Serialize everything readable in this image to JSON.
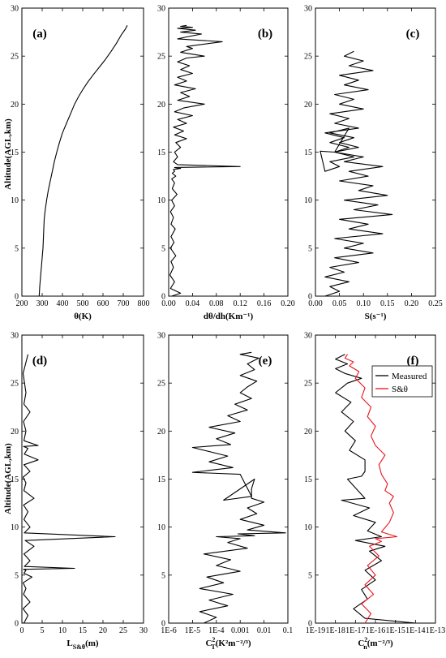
{
  "shared_ylabel": "Altitude(AGL,km)",
  "chart_data": [
    {
      "id": "a",
      "panel_label": "(a)",
      "type": "line",
      "xlabel": "θ(K)",
      "xlim": [
        200,
        800
      ],
      "ylim": [
        0,
        30
      ],
      "xticks": [
        "200",
        "300",
        "400",
        "500",
        "600",
        "700",
        "800"
      ],
      "yticks": [
        "0",
        "5",
        "10",
        "15",
        "20",
        "25",
        "30"
      ],
      "series": [
        {
          "color": "#000000",
          "x": [
            285,
            288,
            292,
            296,
            300,
            304,
            306,
            308,
            310,
            315,
            322,
            330,
            340,
            350,
            360,
            372,
            385,
            400,
            420,
            440,
            460,
            480,
            500,
            525,
            550,
            580,
            610,
            640,
            665,
            690,
            710,
            720
          ],
          "y": [
            0,
            1,
            2,
            3,
            4,
            5,
            6,
            7,
            8,
            9,
            10,
            11,
            12,
            13,
            14,
            15,
            16,
            17,
            18,
            19,
            20,
            20.8,
            21.5,
            22.3,
            23,
            23.8,
            24.6,
            25.5,
            26.3,
            27.2,
            27.8,
            28.2
          ]
        }
      ]
    },
    {
      "id": "b",
      "panel_label": "(b)",
      "type": "line",
      "xlabel": "dθ/dh(Km⁻¹)",
      "xlim": [
        0,
        0.2
      ],
      "ylim": [
        0,
        30
      ],
      "xticks": [
        "0.00",
        "0.04",
        "0.08",
        "0.12",
        "0.16",
        "0.20"
      ],
      "yticks": [
        "0",
        "5",
        "10",
        "15",
        "20",
        "25",
        "30"
      ],
      "series": [
        {
          "color": "#000000",
          "x": [
            0.005,
            0.02,
            0.003,
            0.01,
            0.002,
            0.008,
            0.004,
            0.012,
            0.003,
            0.009,
            0.004,
            0.011,
            0.004,
            0.008,
            0.003,
            0.01,
            0.005,
            0.014,
            0.006,
            0.01,
            0.005,
            0.012,
            0.006,
            0.01,
            0.008,
            0.02,
            0.01,
            0.12,
            0.015,
            0.008,
            0.015,
            0.01,
            0.02,
            0.012,
            0.03,
            0.01,
            0.025,
            0.008,
            0.03,
            0.015,
            0.04,
            0.01,
            0.025,
            0.06,
            0.015,
            0.035,
            0.02,
            0.045,
            0.01,
            0.03,
            0.015,
            0.04,
            0.02,
            0.035,
            0.015,
            0.03,
            0.06,
            0.02,
            0.04,
            0.03,
            0.09,
            0.015,
            0.03,
            0.055,
            0.02,
            0.045,
            0.015,
            0.04,
            0.02,
            0.03
          ],
          "y": [
            0,
            0.3,
            0.8,
            1.5,
            2.2,
            3,
            3.6,
            4.2,
            5,
            5.6,
            6.2,
            7,
            7.5,
            8.2,
            8.8,
            9.4,
            10,
            10.6,
            11.2,
            11.8,
            12.2,
            12.5,
            12.8,
            13,
            13.2,
            13.3,
            13.4,
            13.5,
            13.7,
            14,
            14.5,
            15,
            15.5,
            16,
            16.4,
            16.8,
            17.2,
            17.6,
            18,
            18.4,
            18.8,
            19.2,
            19.6,
            20,
            20.4,
            20.8,
            21.2,
            21.6,
            22,
            22.4,
            22.8,
            23.2,
            23.6,
            24,
            24.4,
            24.8,
            25,
            25.4,
            25.8,
            26,
            26.5,
            26.8,
            27,
            27.3,
            27.5,
            27.7,
            27.9,
            28,
            28.1,
            28.2
          ]
        }
      ]
    },
    {
      "id": "c",
      "panel_label": "(c)",
      "type": "line",
      "xlabel": "S(s⁻¹)",
      "xlim": [
        0,
        0.25
      ],
      "ylim": [
        0,
        30
      ],
      "xticks": [
        "0.00",
        "0.05",
        "0.10",
        "0.15",
        "0.20",
        "0.25"
      ],
      "yticks": [
        "0",
        "5",
        "10",
        "15",
        "20",
        "25",
        "30"
      ],
      "series": [
        {
          "color": "#000000",
          "x": [
            0.02,
            0.05,
            0.03,
            0.07,
            0.02,
            0.06,
            0.03,
            0.09,
            0.04,
            0.12,
            0.06,
            0.1,
            0.04,
            0.14,
            0.07,
            0.11,
            0.05,
            0.16,
            0.08,
            0.13,
            0.06,
            0.15,
            0.09,
            0.12,
            0.05,
            0.11,
            0.07,
            0.14,
            0.06,
            0.1,
            0.04,
            0.09,
            0.05,
            0.08,
            0.03,
            0.07,
            0.04,
            0.01,
            0.02,
            0.05,
            0.03,
            0.08,
            0.04,
            0.07,
            0.03,
            0.06,
            0.02,
            0.09,
            0.04,
            0.07,
            0.03,
            0.1,
            0.05,
            0.08,
            0.04,
            0.11,
            0.06,
            0.09,
            0.05,
            0.12,
            0.07,
            0.1,
            0.06,
            0.08
          ],
          "y": [
            0,
            0.5,
            1,
            1.5,
            2,
            2.5,
            3,
            3.5,
            4,
            4.5,
            5,
            5.5,
            6,
            6.5,
            7,
            7.5,
            8,
            8.5,
            9,
            9.5,
            10,
            10.5,
            11,
            11.5,
            12,
            12.5,
            13,
            13.5,
            14,
            14.5,
            15,
            15.5,
            16,
            16.5,
            17,
            17.5,
            15,
            15.1,
            13,
            13.5,
            14,
            14.5,
            15,
            15.5,
            16,
            16.5,
            17,
            17.5,
            18,
            18.5,
            19,
            19.5,
            20,
            20.5,
            21,
            21.5,
            22,
            22.5,
            23,
            23.5,
            24,
            24.5,
            25,
            25.5
          ]
        }
      ]
    },
    {
      "id": "d",
      "panel_label": "(d)",
      "type": "line",
      "xlabel": "L_S&θ(m)",
      "xlim": [
        0,
        30
      ],
      "ylim": [
        0,
        30
      ],
      "xticks": [
        "0",
        "5",
        "10",
        "15",
        "20",
        "25",
        "30"
      ],
      "yticks": [
        "0",
        "5",
        "10",
        "15",
        "20",
        "25",
        "30"
      ],
      "series": [
        {
          "color": "#000000",
          "x": [
            0.5,
            1.5,
            0.3,
            2,
            0.4,
            1,
            0.3,
            2.5,
            0.5,
            1,
            0.4,
            13,
            0.6,
            2,
            0.5,
            3,
            0.8,
            23,
            0.6,
            2,
            0.5,
            1.5,
            0.4,
            3,
            0.5,
            1,
            0.3,
            2,
            0.5,
            4,
            0.6,
            1.5,
            0.4,
            4,
            0.5,
            1,
            0.4,
            2,
            0.5,
            1,
            0.3,
            1.5
          ],
          "y": [
            0,
            0.8,
            1.5,
            2.2,
            3,
            3.6,
            4.2,
            4.8,
            5.2,
            5.5,
            5.6,
            5.7,
            5.9,
            6.5,
            7.2,
            8,
            8.6,
            9,
            9.4,
            10,
            10.8,
            11.6,
            12.3,
            13,
            13.8,
            14.6,
            15.2,
            15.8,
            16.5,
            17,
            17.6,
            18.2,
            18.4,
            18.5,
            19,
            20,
            21,
            22,
            22.8,
            24,
            26,
            28
          ]
        }
      ]
    },
    {
      "id": "e",
      "panel_label": "(e)",
      "type": "line",
      "xlabel": "C²T(K²m⁻²/³)",
      "xscale": "log",
      "xlim": [
        1e-06,
        0.1
      ],
      "ylim": [
        0,
        30
      ],
      "xticks": [
        "1E-6",
        "1E-5",
        "1E-4",
        "0.001",
        "0.01",
        "0.1"
      ],
      "yticks": [
        "0",
        "5",
        "10",
        "15",
        "20",
        "25",
        "30"
      ],
      "series": [
        {
          "color": "#000000",
          "x": [
            3e-05,
            0.0001,
            2e-05,
            0.0003,
            5e-05,
            0.0005,
            2e-05,
            0.0002,
            4e-05,
            0.001,
            0.0001,
            0.0004,
            3e-05,
            0.002,
            0.0003,
            0.001,
            0.0001,
            0.004,
            0.0008,
            0.08,
            0.002,
            0.01,
            0.001,
            0.005,
            0.002,
            0.01,
            0.003,
            0.003,
            0.004,
            0.0002,
            0.003,
            0.001,
            1e-05,
            0.0005,
            5e-05,
            0.0003,
            1e-05,
            0.0004,
            0.0001,
            0.0006,
            5e-05,
            0.001,
            0.0003,
            0.002,
            0.0006,
            0.003,
            0.001,
            0.002,
            0.005,
            0.001,
            0.004,
            0.002,
            0.006,
            0.001,
            0.003
          ],
          "y": [
            0,
            0.6,
            1.2,
            1.8,
            2.4,
            3,
            3.6,
            4.2,
            4.8,
            5.4,
            6,
            6.6,
            7.2,
            7.8,
            8.4,
            8.8,
            9,
            9.1,
            9.3,
            9.4,
            9.7,
            10.2,
            10.8,
            11.4,
            12,
            12.6,
            13,
            14,
            15,
            12.8,
            13.2,
            15.5,
            15.7,
            16.2,
            16.8,
            17.4,
            18.3,
            18.6,
            19.2,
            19.8,
            20.4,
            21,
            21.6,
            22.2,
            22.8,
            23.4,
            24,
            24.6,
            25.2,
            25.8,
            26.4,
            27,
            27.6,
            28,
            28.2
          ]
        }
      ]
    },
    {
      "id": "f",
      "panel_label": "(f)",
      "type": "line",
      "xlabel": "C²n(m⁻²/³)",
      "xscale": "log",
      "xlim": [
        1e-19,
        1e-13
      ],
      "ylim": [
        0,
        30
      ],
      "xticks": [
        "1E-19",
        "1E-18",
        "1E-17",
        "1E-16",
        "1E-15",
        "1E-14",
        "1E-13"
      ],
      "yticks": [
        "0",
        "5",
        "10",
        "15",
        "20",
        "25",
        "30"
      ],
      "legend": {
        "position": "top-right",
        "entries": [
          {
            "label": "Measured",
            "color": "#000000"
          },
          {
            "label": "S&θ",
            "color": "#e8141b"
          }
        ]
      },
      "series": [
        {
          "name": "Measured",
          "color": "#000000",
          "x": [
            1e-14,
            3e-17,
            8e-18,
            4e-17,
            2e-17,
            1e-16,
            3e-17,
            2e-16,
            5e-17,
            3e-16,
            1e-17,
            2e-16,
            4e-17,
            1e-16,
            8e-18,
            5e-17,
            2e-18,
            3e-17,
            4e-18,
            2e-17,
            3e-17,
            3e-17,
            5e-18,
            1e-17,
            3e-18,
            8e-18,
            2e-18,
            6e-18,
            1e-18,
            4e-18,
            2e-17,
            3e-18,
            1e-18,
            4e-18,
            1e-18,
            3e-18
          ],
          "y": [
            0,
            0.5,
            1.5,
            2.5,
            3.5,
            4.5,
            5.5,
            6.5,
            7.5,
            8,
            8.6,
            9,
            9.6,
            10.5,
            11.2,
            12,
            12.8,
            13,
            15,
            15.3,
            15.8,
            17,
            18,
            19,
            20,
            21,
            22,
            23,
            24,
            25,
            25.5,
            26,
            26.5,
            27,
            27.5,
            28
          ]
        },
        {
          "name": "S&θ",
          "color": "#e8141b",
          "x": [
            3e-17,
            6e-17,
            2e-17,
            8e-17,
            3e-17,
            1e-16,
            4e-17,
            1.5e-16,
            5e-17,
            2e-16,
            1e-16,
            1.2e-15,
            2e-16,
            5e-16,
            8e-16,
            5e-16,
            8e-16,
            3e-16,
            4e-16,
            2e-16,
            1.5e-16,
            3e-16,
            1e-16,
            6e-17,
            1e-16,
            4e-17,
            6e-17,
            2e-17,
            3e-17,
            1e-17,
            1.5e-17,
            5e-18,
            8e-18,
            3e-18,
            4e-18
          ],
          "y": [
            0,
            1,
            2,
            3,
            4,
            5,
            6,
            7,
            8,
            8.5,
            8.8,
            9,
            9.5,
            10.5,
            11.5,
            12.5,
            13.2,
            13.8,
            14.5,
            15.5,
            16.5,
            17.5,
            18.5,
            19.5,
            20.5,
            21.5,
            22.5,
            23.5,
            24.5,
            25.5,
            26.2,
            26.8,
            27.2,
            27.6,
            28
          ]
        }
      ]
    }
  ]
}
